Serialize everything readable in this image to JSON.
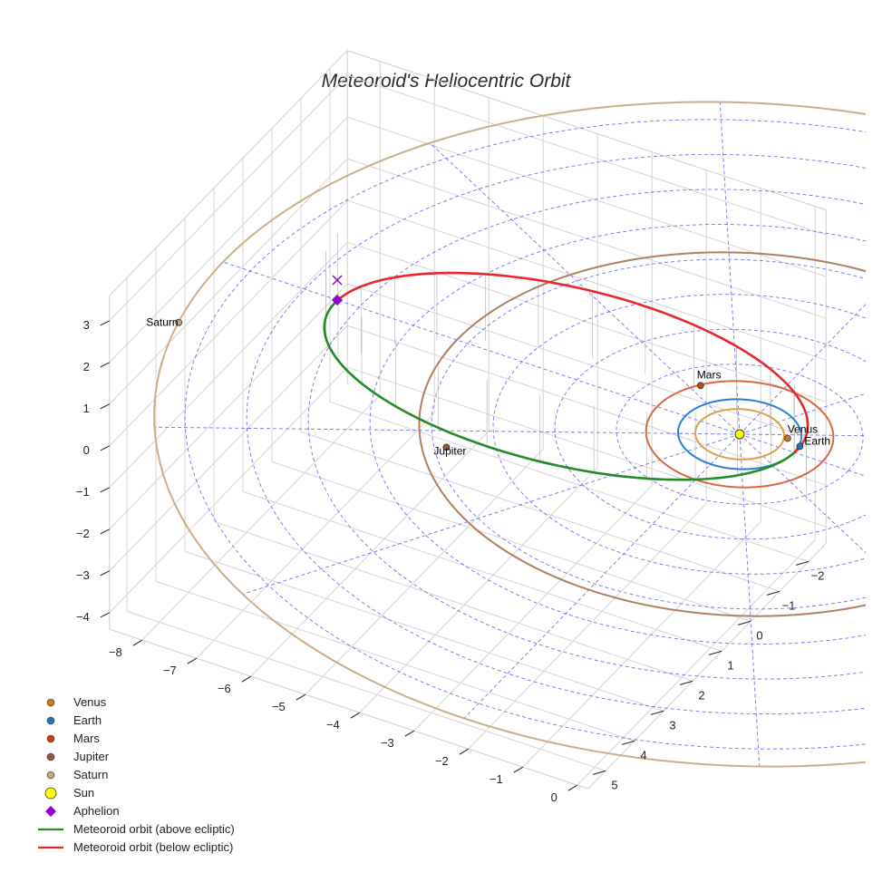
{
  "chart_data": {
    "type": "scatter3d",
    "title": "Meteoroid's Heliocentric Orbit",
    "x_ticks": [
      -8,
      -7,
      -6,
      -5,
      -4,
      -3,
      -2,
      -1,
      0
    ],
    "y_ticks": [
      -2,
      -1,
      0,
      1,
      2,
      3,
      4,
      5
    ],
    "z_ticks": [
      3,
      2,
      1,
      0,
      -1,
      -2,
      -3,
      -4
    ],
    "xlim": [
      -8.6,
      0.2
    ],
    "ylim": [
      -2.6,
      5.6
    ],
    "zlim": [
      -4.4,
      3.6
    ],
    "grid": true,
    "ecliptic_rings_au": [
      1,
      2,
      3,
      4,
      5,
      6,
      7,
      8,
      9
    ],
    "planets": [
      {
        "name": "Venus",
        "color": "#c77a1e",
        "orbit_color": "#d9a14a",
        "a": 0.72,
        "x": 0.72,
        "y": -0.3,
        "z": 0
      },
      {
        "name": "Earth",
        "color": "#1f77b4",
        "orbit_color": "#2a7fd0",
        "a": 1.0,
        "x": 1.0,
        "y": -0.2,
        "z": 0
      },
      {
        "name": "Mars",
        "color": "#c1440e",
        "orbit_color": "#d9673f",
        "a": 1.52,
        "x": -1.2,
        "y": -0.9,
        "z": 0
      },
      {
        "name": "Jupiter",
        "color": "#8c5a3c",
        "orbit_color": "#b08060",
        "a": 5.2,
        "x": -3.9,
        "y": 2.8,
        "z": 0
      },
      {
        "name": "Saturn",
        "color": "#c8a27a",
        "orbit_color": "#cdae8a",
        "a": 9.5,
        "x": -9.3,
        "y": 1.9,
        "z": 0
      }
    ],
    "sun": {
      "name": "Sun",
      "color": "#ffff00",
      "x": 0,
      "y": 0,
      "z": 0
    },
    "aphelion": {
      "name": "Aphelion",
      "color": "#9400d3",
      "x": -7.4,
      "y": 0,
      "z": 0
    },
    "meteoroid_orbit": {
      "a": 4.2,
      "e": 0.76,
      "peak_z": 0.28,
      "color_above": "#228b22",
      "color_below": "#e8262b"
    },
    "legend": [
      {
        "label": "Venus",
        "kind": "dot",
        "color": "#c77a1e"
      },
      {
        "label": "Earth",
        "kind": "dot",
        "color": "#1f77b4"
      },
      {
        "label": "Mars",
        "kind": "dot",
        "color": "#c1440e"
      },
      {
        "label": "Jupiter",
        "kind": "dot",
        "color": "#8c5a3c"
      },
      {
        "label": "Saturn",
        "kind": "dot",
        "color": "#c8a27a"
      },
      {
        "label": "Sun",
        "kind": "sun",
        "color": "#ffff00"
      },
      {
        "label": "Aphelion",
        "kind": "diamond",
        "color": "#9400d3"
      },
      {
        "label": "Meteoroid orbit (above ecliptic)",
        "kind": "line",
        "color": "#228b22"
      },
      {
        "label": "Meteoroid orbit (below ecliptic)",
        "kind": "line",
        "color": "#e8262b"
      }
    ]
  }
}
